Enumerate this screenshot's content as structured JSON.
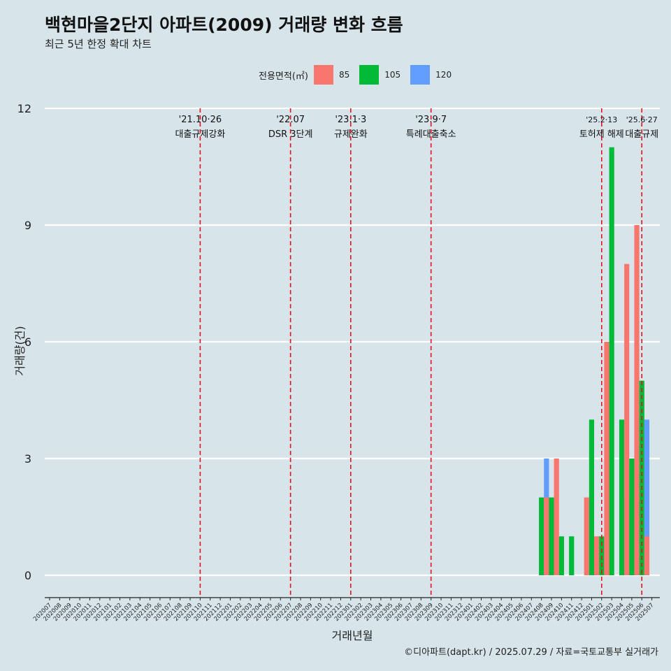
{
  "title": "백현마을2단지 아파트(2009) 거래량 변화 흐름",
  "subtitle": "최근 5년 한정 확대 차트",
  "credit": "©디아파트(dapt.kr) / 2025.07.29 / 자료=국토교통부 실거래가",
  "legend": {
    "title": "전용면적(㎡)",
    "items": [
      {
        "label": "85",
        "color": "#f8766d"
      },
      {
        "label": "105",
        "color": "#00ba38"
      },
      {
        "label": "120",
        "color": "#619cff"
      }
    ]
  },
  "chart_data": {
    "type": "bar",
    "xlabel": "거래년월",
    "ylabel": "거래량(건)",
    "ylim": [
      0,
      12
    ],
    "yticks": [
      0,
      3,
      6,
      9,
      12
    ],
    "categories": [
      "202007",
      "202008",
      "202009",
      "202010",
      "202011",
      "202012",
      "202101",
      "202102",
      "202103",
      "202104",
      "202105",
      "202106",
      "202107",
      "202108",
      "202109",
      "202110",
      "202111",
      "202112",
      "202201",
      "202202",
      "202203",
      "202204",
      "202205",
      "202206",
      "202207",
      "202208",
      "202209",
      "202210",
      "202211",
      "202212",
      "202301",
      "202302",
      "202303",
      "202304",
      "202305",
      "202306",
      "202307",
      "202308",
      "202309",
      "202310",
      "202311",
      "202312",
      "202401",
      "202402",
      "202403",
      "202404",
      "202405",
      "202406",
      "202407",
      "202408",
      "202409",
      "202410",
      "202411",
      "202412",
      "202501",
      "202502",
      "202503",
      "202504",
      "202505",
      "202506",
      "202507"
    ],
    "series": [
      {
        "name": "85",
        "color": "#f8766d",
        "values": {
          "202409": 2,
          "202410": 3,
          "202501": 2,
          "202502": 1,
          "202503": 6,
          "202505": 8,
          "202506": 9,
          "202507": 1
        }
      },
      {
        "name": "105",
        "color": "#00ba38",
        "values": {
          "202408": 2,
          "202409": 2,
          "202410": 1,
          "202411": 1,
          "202501": 4,
          "202502": 1,
          "202503": 11,
          "202504": 4,
          "202505": 3,
          "202506": 5
        }
      },
      {
        "name": "120",
        "color": "#619cff",
        "values": {
          "202408": 3,
          "202502": 1,
          "202504": 2,
          "202506": 4
        }
      }
    ],
    "annotations": [
      {
        "month": "202110",
        "date": "'21.10·26",
        "label": "대출규제강화"
      },
      {
        "month": "202207",
        "date": "'22.07",
        "label": "DSR 3단계"
      },
      {
        "month": "202301",
        "date": "'23.1·3",
        "label": "규제완화"
      },
      {
        "month": "202309",
        "date": "'23.9·7",
        "label": "특례대출축소"
      },
      {
        "month": "202502",
        "date": "'25.2·13",
        "label": "토허제 해제"
      },
      {
        "month": "202506",
        "date": "'25.6·27",
        "label": "대출규제"
      }
    ]
  }
}
